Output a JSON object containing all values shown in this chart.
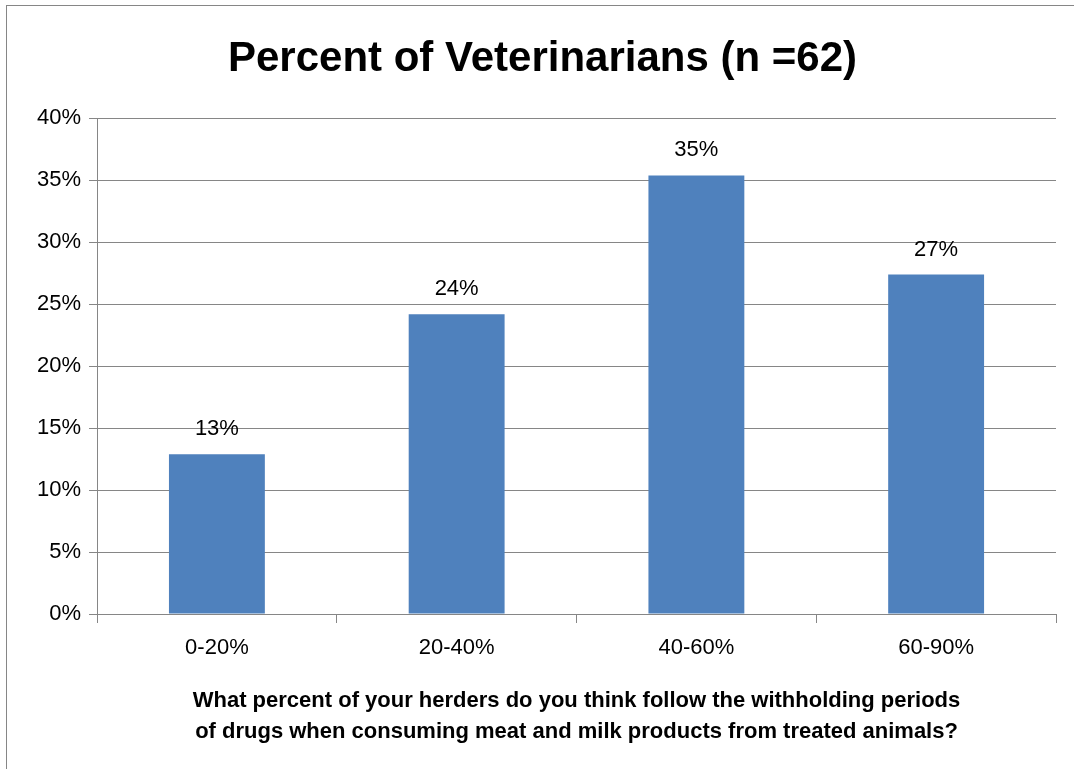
{
  "chart_data": {
    "type": "bar",
    "title": "Percent of Veterinarians (n =62)",
    "xlabel": "What percent of your herders do you think follow the withholding periods of drugs when consuming meat and milk products from treated animals?",
    "categories": [
      "0-20%",
      "20-40%",
      "40-60%",
      "60-90%"
    ],
    "values": [
      12.9,
      24.2,
      35.4,
      27.4
    ],
    "value_labels": [
      "13%",
      "24%",
      "35%",
      "27%"
    ],
    "color": "#4f81bd",
    "ylim": [
      0,
      40
    ],
    "yticks": [
      {
        "value": 0,
        "label": "0%"
      },
      {
        "value": 5,
        "label": "5%"
      },
      {
        "value": 10,
        "label": "10%"
      },
      {
        "value": 15,
        "label": "15%"
      },
      {
        "value": 20,
        "label": "20%"
      },
      {
        "value": 25,
        "label": "25%"
      },
      {
        "value": 30,
        "label": "30%"
      },
      {
        "value": 35,
        "label": "35%"
      },
      {
        "value": 40,
        "label": "40%"
      }
    ],
    "grid": "y"
  }
}
